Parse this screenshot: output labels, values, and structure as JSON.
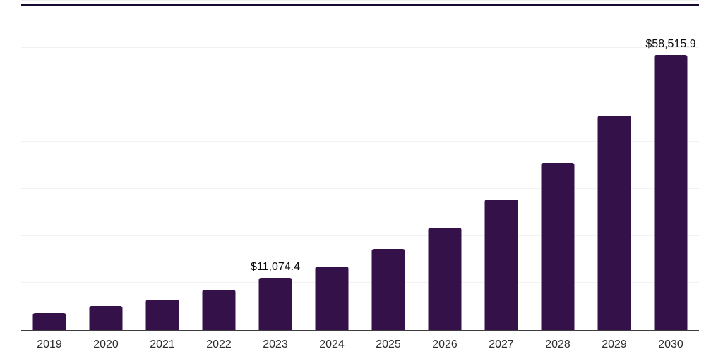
{
  "chart": {
    "background_color": "#ffffff",
    "bar_color": "#351149",
    "top_stripe_color": "#170930",
    "axis_line_color": "#3d3d3d",
    "gridline_color": "#f2f2f2",
    "x_label_color": "#2e2e2e",
    "data_label_color": "#0a0a0a"
  },
  "chart_data": {
    "type": "bar",
    "title": "",
    "xlabel": "",
    "ylabel": "",
    "categories": [
      "2019",
      "2020",
      "2021",
      "2022",
      "2023",
      "2024",
      "2025",
      "2026",
      "2027",
      "2028",
      "2029",
      "2030"
    ],
    "values": [
      3600,
      5100,
      6450,
      8540,
      11074.4,
      13500,
      17240,
      21730,
      27730,
      35520,
      45570,
      58515.9
    ],
    "ylim": [
      0,
      70000
    ],
    "grid_step": 10000,
    "grid_visible": true,
    "y_axis_labels_visible": false,
    "legend_position": "none",
    "data_labels": [
      {
        "category": "2023",
        "text": "$11,074.4"
      },
      {
        "category": "2030",
        "text": "$58,515.9"
      }
    ]
  }
}
